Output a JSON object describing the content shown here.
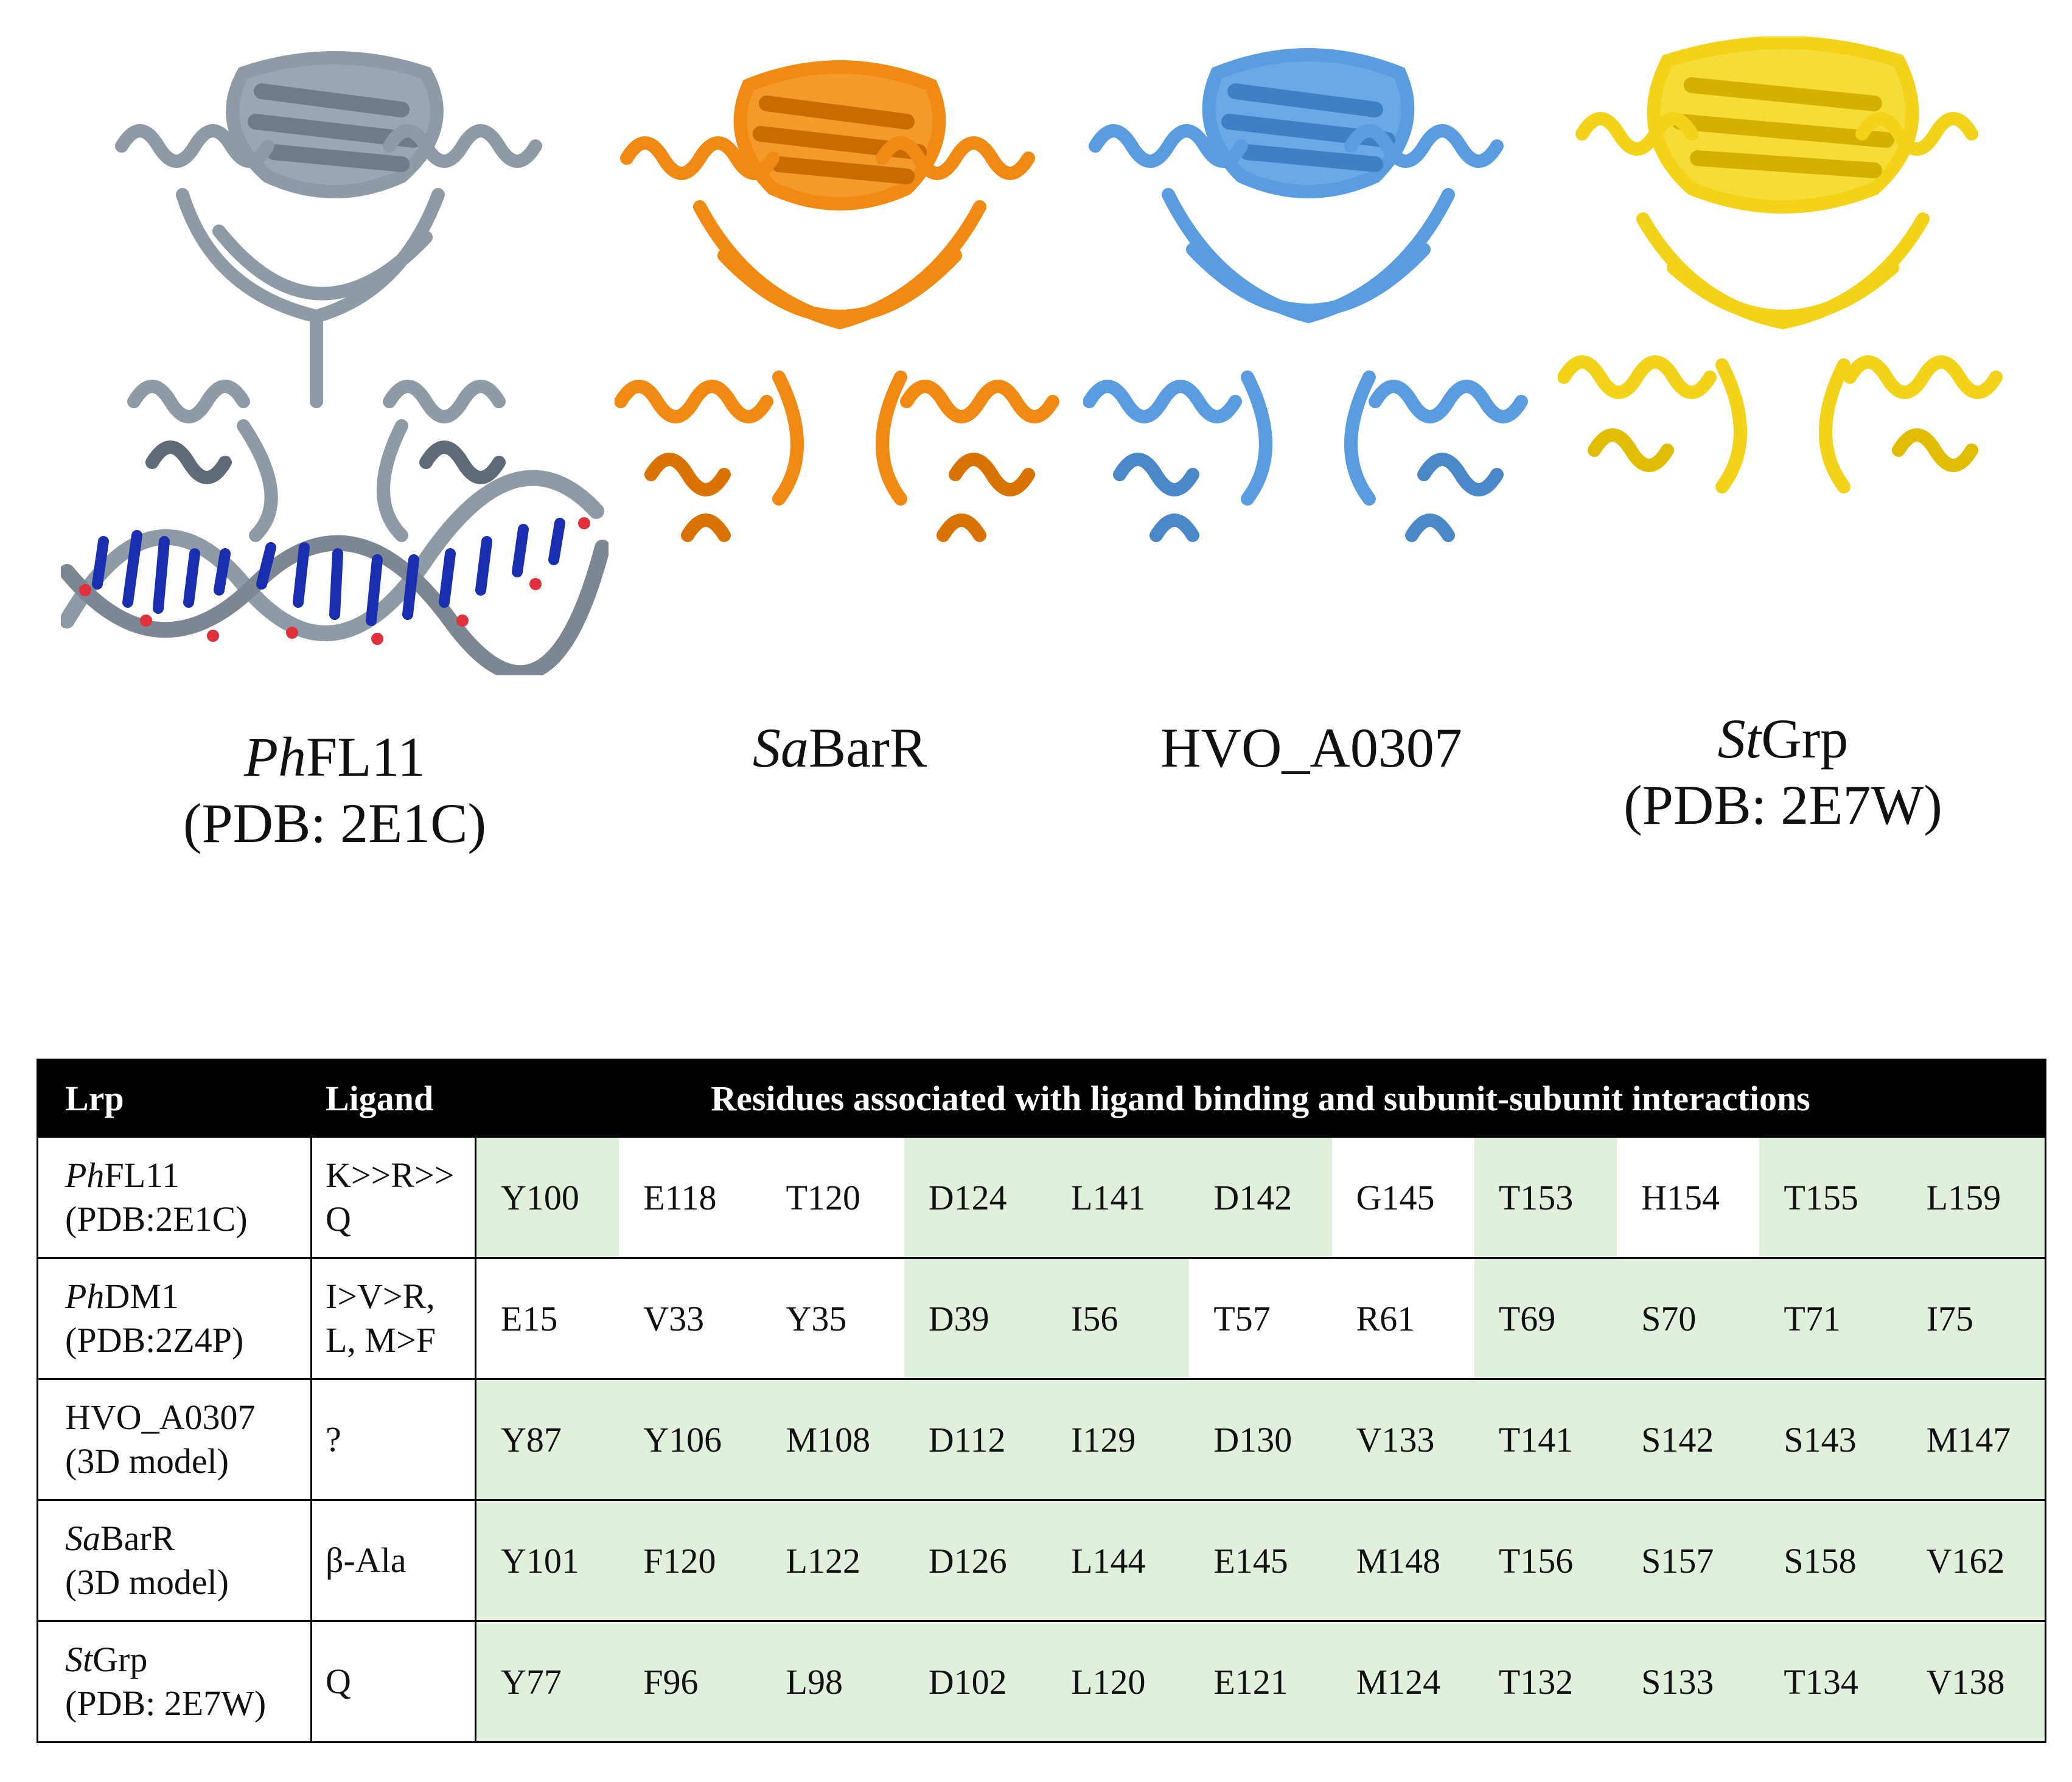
{
  "figure": {
    "structures": [
      {
        "name_prefix": "Ph",
        "name_rest": "FL11",
        "subtitle": "(PDB: 2E1C)",
        "color": "#8e9aa6",
        "icon": "protein-ribbon-with-dna"
      },
      {
        "name_prefix": "Sa",
        "name_rest": "BarR",
        "subtitle": "",
        "color": "#f08a12",
        "icon": "protein-ribbon"
      },
      {
        "name_prefix": "",
        "name_rest": "HVO_A0307",
        "subtitle": "",
        "color": "#5a9ce0",
        "icon": "protein-ribbon"
      },
      {
        "name_prefix": "St",
        "name_rest": "Grp",
        "subtitle": "(PDB: 2E7W)",
        "color": "#f3d21a",
        "icon": "protein-ribbon"
      }
    ]
  },
  "table": {
    "headers": {
      "lrp": "Lrp",
      "ligand": "Ligand",
      "residues": "Residues associated with ligand binding and subunit-subunit interactions"
    },
    "rows": [
      {
        "lrp_prefix": "Ph",
        "lrp_rest": "FL11",
        "lrp_sub": "(PDB:2E1C)",
        "ligand_l1": "K>>R>>",
        "ligand_l2": "Q",
        "residues": [
          "Y100",
          "E118",
          "T120",
          "D124",
          "L141",
          "D142",
          "G145",
          "T153",
          "H154",
          "T155",
          "L159"
        ],
        "shaded": [
          true,
          false,
          false,
          true,
          true,
          true,
          false,
          true,
          false,
          true,
          true
        ]
      },
      {
        "lrp_prefix": "Ph",
        "lrp_rest": "DM1",
        "lrp_sub": "(PDB:2Z4P)",
        "ligand_l1": "I>V>R,",
        "ligand_l2": "L, M>F",
        "residues": [
          "E15",
          "V33",
          "Y35",
          "D39",
          "I56",
          "T57",
          "R61",
          "T69",
          "S70",
          "T71",
          "I75"
        ],
        "shaded": [
          false,
          false,
          false,
          true,
          true,
          false,
          false,
          true,
          true,
          true,
          true
        ]
      },
      {
        "lrp_prefix": "",
        "lrp_rest": "HVO_A0307",
        "lrp_sub": "(3D model)",
        "ligand_l1": "?",
        "ligand_l2": "",
        "residues": [
          "Y87",
          "Y106",
          "M108",
          "D112",
          "I129",
          "D130",
          "V133",
          "T141",
          "S142",
          "S143",
          "M147"
        ],
        "shaded": [
          true,
          true,
          true,
          true,
          true,
          true,
          true,
          true,
          true,
          true,
          true
        ]
      },
      {
        "lrp_prefix": "Sa",
        "lrp_rest": "BarR",
        "lrp_sub": "(3D model)",
        "ligand_l1": "β-Ala",
        "ligand_l2": "",
        "residues": [
          "Y101",
          "F120",
          "L122",
          "D126",
          "L144",
          "E145",
          "M148",
          "T156",
          "S157",
          "S158",
          "V162"
        ],
        "shaded": [
          true,
          true,
          true,
          true,
          true,
          true,
          true,
          true,
          true,
          true,
          true
        ]
      },
      {
        "lrp_prefix": "St",
        "lrp_rest": "Grp",
        "lrp_sub": "(PDB: 2E7W)",
        "ligand_l1": "Q",
        "ligand_l2": "",
        "residues": [
          "Y77",
          "F96",
          "L98",
          "D102",
          "L120",
          "E121",
          "M124",
          "T132",
          "S133",
          "T134",
          "V138"
        ],
        "shaded": [
          true,
          true,
          true,
          true,
          true,
          true,
          true,
          true,
          true,
          true,
          true
        ]
      }
    ]
  }
}
